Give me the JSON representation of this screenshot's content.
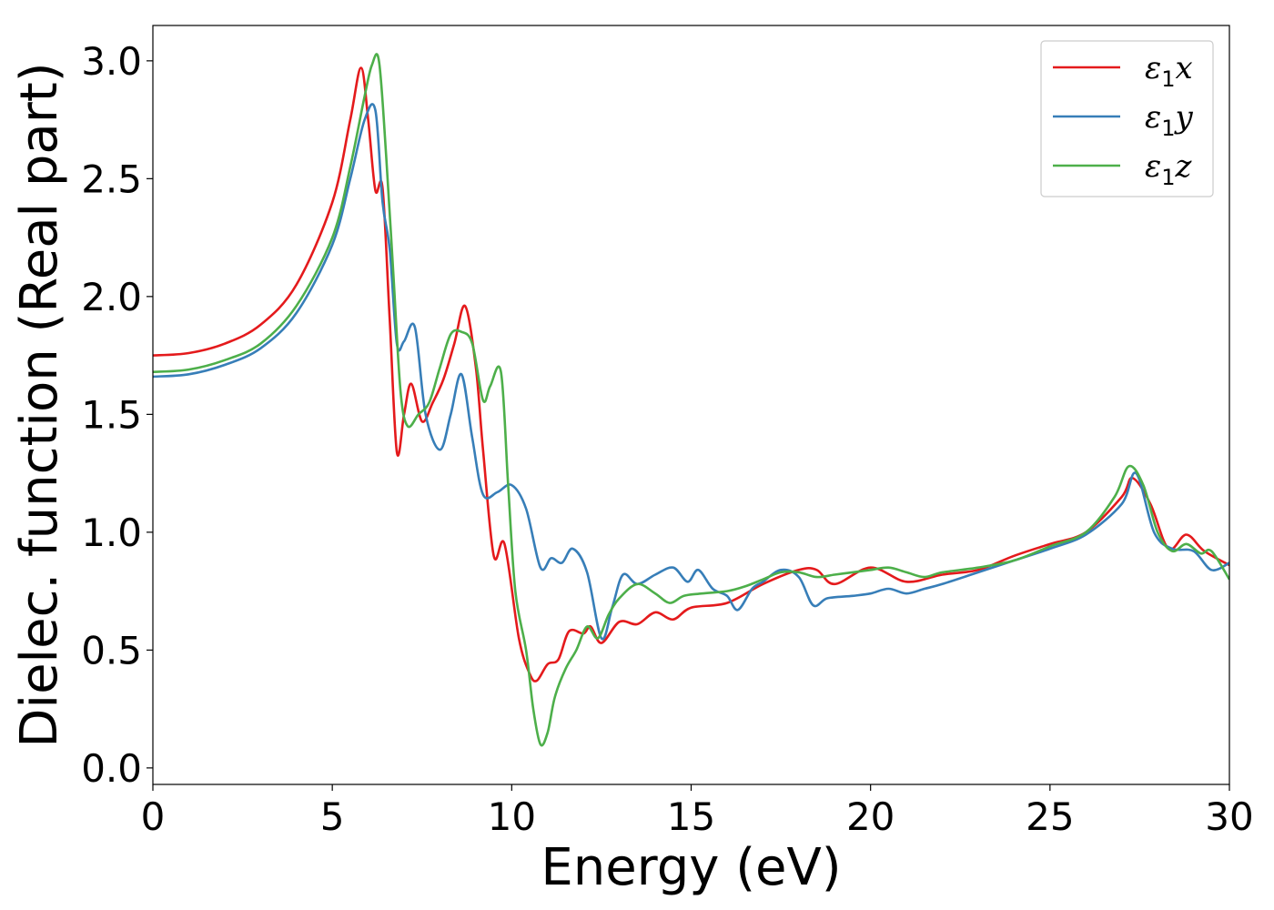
{
  "chart_data": {
    "type": "line",
    "title": "",
    "xlabel": "Energy (eV)",
    "ylabel": "Dielec. function (Real part)",
    "xlim": [
      0,
      30
    ],
    "ylim": [
      -0.07,
      3.15
    ],
    "xticks": [
      "0",
      "5",
      "10",
      "15",
      "20",
      "25",
      "30"
    ],
    "yticks": [
      "0.0",
      "0.5",
      "1.0",
      "1.5",
      "2.0",
      "2.5",
      "3.0"
    ],
    "grid": false,
    "legend_position": "top-right",
    "series": [
      {
        "name": "ε1x",
        "legend": {
          "base": "ε",
          "sub": "1",
          "tail": "x"
        },
        "color": "#e41a1c",
        "x": [
          0,
          1,
          2,
          3,
          4,
          5,
          5.5,
          5.8,
          6.0,
          6.2,
          6.4,
          6.6,
          6.8,
          7.0,
          7.2,
          7.5,
          7.8,
          8.1,
          8.4,
          8.7,
          9.0,
          9.2,
          9.5,
          9.8,
          10.2,
          10.5,
          10.7,
          11.0,
          11.3,
          11.6,
          12.0,
          12.2,
          12.5,
          13.0,
          13.5,
          14.0,
          14.5,
          15.0,
          16.0,
          17.0,
          18.0,
          18.5,
          19.0,
          20.0,
          21.0,
          22.0,
          23.0,
          24.0,
          25.0,
          26.0,
          27.0,
          27.3,
          27.8,
          28.3,
          28.8,
          29.3,
          30.0
        ],
        "y": [
          1.75,
          1.76,
          1.8,
          1.88,
          2.05,
          2.4,
          2.75,
          2.97,
          2.75,
          2.45,
          2.46,
          1.9,
          1.34,
          1.5,
          1.63,
          1.47,
          1.55,
          1.65,
          1.8,
          1.96,
          1.7,
          1.35,
          0.9,
          0.95,
          0.55,
          0.4,
          0.37,
          0.44,
          0.46,
          0.58,
          0.57,
          0.6,
          0.53,
          0.62,
          0.61,
          0.66,
          0.63,
          0.68,
          0.7,
          0.78,
          0.84,
          0.84,
          0.78,
          0.85,
          0.79,
          0.82,
          0.84,
          0.9,
          0.95,
          1.0,
          1.15,
          1.23,
          1.12,
          0.93,
          0.99,
          0.92,
          0.86
        ]
      },
      {
        "name": "ε1y",
        "legend": {
          "base": "ε",
          "sub": "1",
          "tail": "y"
        },
        "color": "#377eb8",
        "x": [
          0,
          1,
          2,
          3,
          4,
          5,
          5.5,
          5.9,
          6.2,
          6.4,
          6.6,
          6.8,
          7.0,
          7.3,
          7.6,
          8.0,
          8.3,
          8.6,
          8.9,
          9.2,
          9.6,
          10.0,
          10.4,
          10.8,
          11.1,
          11.4,
          11.7,
          12.1,
          12.5,
          12.8,
          13.1,
          13.5,
          14.0,
          14.5,
          14.9,
          15.2,
          15.6,
          16.0,
          16.3,
          16.7,
          17.0,
          17.5,
          18.0,
          18.4,
          18.8,
          19.5,
          20.0,
          20.5,
          21.0,
          21.5,
          22.0,
          23.0,
          24.0,
          25.0,
          26.0,
          27.0,
          27.4,
          27.9,
          28.4,
          29.0,
          29.5,
          30.0
        ],
        "y": [
          1.66,
          1.67,
          1.71,
          1.78,
          1.93,
          2.22,
          2.5,
          2.75,
          2.79,
          2.4,
          2.2,
          1.8,
          1.81,
          1.87,
          1.5,
          1.35,
          1.5,
          1.67,
          1.4,
          1.16,
          1.17,
          1.2,
          1.1,
          0.85,
          0.89,
          0.87,
          0.93,
          0.83,
          0.55,
          0.68,
          0.82,
          0.78,
          0.82,
          0.85,
          0.79,
          0.84,
          0.76,
          0.73,
          0.67,
          0.76,
          0.79,
          0.84,
          0.81,
          0.69,
          0.72,
          0.73,
          0.74,
          0.76,
          0.74,
          0.76,
          0.78,
          0.83,
          0.88,
          0.93,
          0.99,
          1.12,
          1.25,
          1.0,
          0.93,
          0.92,
          0.84,
          0.87
        ]
      },
      {
        "name": "ε1z",
        "legend": {
          "base": "ε",
          "sub": "1",
          "tail": "z"
        },
        "color": "#4daf4a",
        "x": [
          0,
          1,
          2,
          3,
          4,
          5,
          5.5,
          5.9,
          6.1,
          6.3,
          6.5,
          6.7,
          6.9,
          7.1,
          7.4,
          7.7,
          8.0,
          8.3,
          8.6,
          8.9,
          9.2,
          9.4,
          9.7,
          9.9,
          10.1,
          10.4,
          10.6,
          10.8,
          11.0,
          11.2,
          11.5,
          11.8,
          12.1,
          12.4,
          12.7,
          13.0,
          13.5,
          14.0,
          14.4,
          14.8,
          15.3,
          16.0,
          16.5,
          17.0,
          17.5,
          18.0,
          18.5,
          19.0,
          19.5,
          20.0,
          20.5,
          21.0,
          21.5,
          22.0,
          23.0,
          24.0,
          25.0,
          26.0,
          26.8,
          27.2,
          27.6,
          28.0,
          28.4,
          28.8,
          29.2,
          29.5,
          30.0
        ],
        "y": [
          1.68,
          1.69,
          1.73,
          1.8,
          1.96,
          2.25,
          2.55,
          2.85,
          2.98,
          3.0,
          2.6,
          2.1,
          1.6,
          1.45,
          1.5,
          1.55,
          1.7,
          1.84,
          1.85,
          1.8,
          1.56,
          1.62,
          1.68,
          1.2,
          0.75,
          0.5,
          0.25,
          0.1,
          0.15,
          0.3,
          0.42,
          0.5,
          0.6,
          0.55,
          0.65,
          0.72,
          0.78,
          0.74,
          0.7,
          0.73,
          0.74,
          0.75,
          0.77,
          0.8,
          0.83,
          0.83,
          0.81,
          0.82,
          0.83,
          0.84,
          0.85,
          0.83,
          0.81,
          0.83,
          0.85,
          0.88,
          0.94,
          1.0,
          1.15,
          1.28,
          1.2,
          1.0,
          0.92,
          0.95,
          0.91,
          0.92,
          0.8
        ]
      }
    ]
  }
}
